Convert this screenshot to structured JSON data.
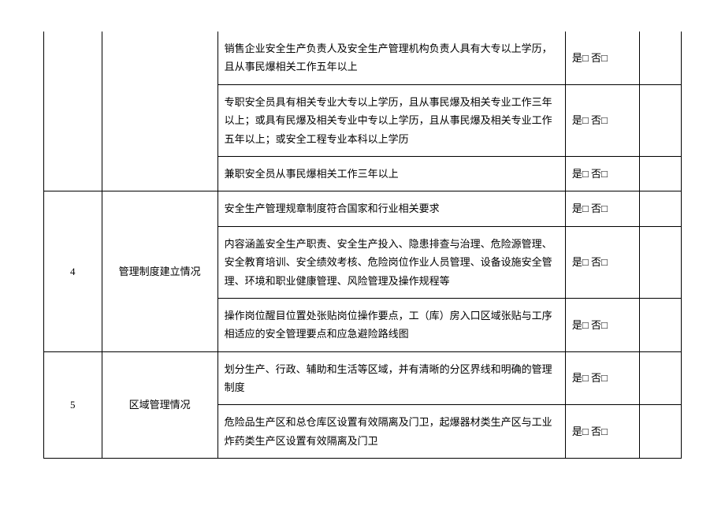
{
  "colors": {
    "border": "#000000",
    "text": "#000000",
    "background": "#ffffff"
  },
  "typography": {
    "font_family": "SimSun",
    "font_size": 13,
    "line_height": 1.8
  },
  "layout": {
    "col_widths": {
      "num": 70,
      "cat": 140,
      "desc": 420,
      "check": 90,
      "last": 50
    }
  },
  "checkbox": {
    "yes": "是□",
    "no": "否□"
  },
  "sections": [
    {
      "num": "",
      "category": "",
      "rows": [
        {
          "desc": "销售企业安全生产负责人及安全生产管理机构负责人具有大专以上学历，且从事民爆相关工作五年以上"
        },
        {
          "desc": "专职安全员具有相关专业大专以上学历，且从事民爆及相关专业工作三年以上；或具有民爆及相关专业中专以上学历，且从事民爆及相关专业工作五年以上；或安全工程专业本科以上学历"
        },
        {
          "desc": "兼职安全员从事民爆相关工作三年以上"
        }
      ]
    },
    {
      "num": "4",
      "category": "管理制度建立情况",
      "rows": [
        {
          "desc": "安全生产管理规章制度符合国家和行业相关要求"
        },
        {
          "desc": "内容涵盖安全生产职责、安全生产投入、隐患排查与治理、危险源管理、安全教育培训、安全绩效考核、危险岗位作业人员管理、设备设施安全管理、环境和职业健康管理、风险管理及操作规程等"
        },
        {
          "desc": "操作岗位醒目位置处张贴岗位操作要点，工（库）房入口区域张贴与工序相适应的安全管理要点和应急避险路线图"
        }
      ]
    },
    {
      "num": "5",
      "category": "区域管理情况",
      "rows": [
        {
          "desc": "划分生产、行政、辅助和生活等区域，并有清晰的分区界线和明确的管理制度"
        },
        {
          "desc": "危险品生产区和总仓库区设置有效隔离及门卫，起爆器材类生产区与工业炸药类生产区设置有效隔离及门卫"
        }
      ]
    }
  ]
}
